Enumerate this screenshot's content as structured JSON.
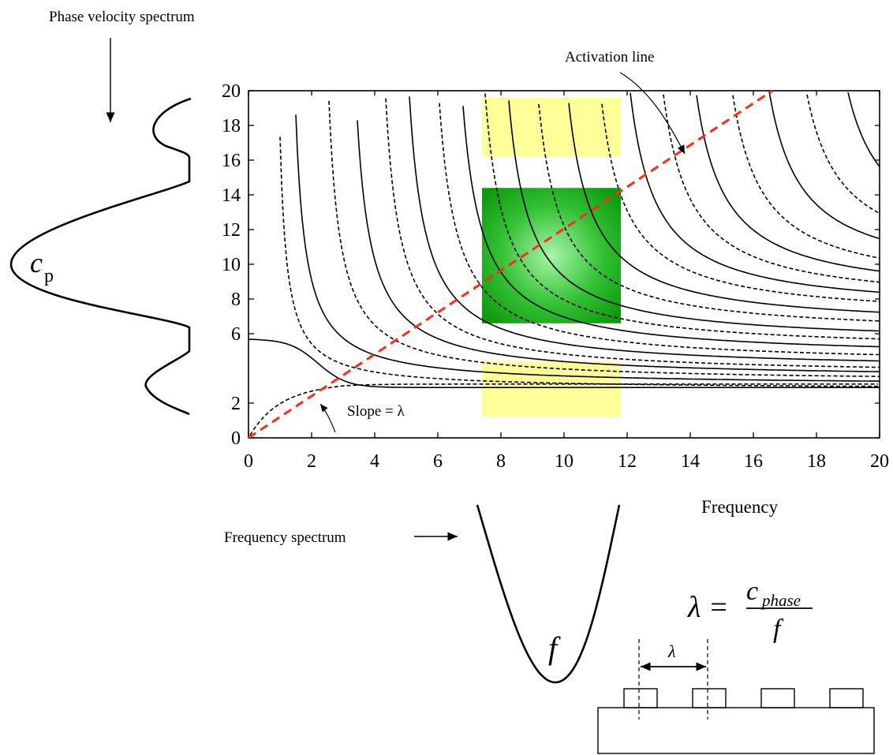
{
  "chart_data": {
    "type": "line",
    "title": "",
    "xlabel": "Frequency",
    "ylabel": "",
    "xlim": [
      0,
      20
    ],
    "ylim": [
      0,
      20
    ],
    "x_ticks": [
      0,
      2,
      4,
      6,
      8,
      10,
      12,
      14,
      16,
      18,
      20
    ],
    "y_ticks": [
      0,
      2,
      6,
      8,
      10,
      12,
      14,
      16,
      18,
      20
    ],
    "x_tick_labels": [
      "0",
      "2",
      "4",
      "6",
      "8",
      "10",
      "12",
      "14",
      "16",
      "18",
      "20"
    ],
    "y_tick_labels": [
      "0",
      "2",
      "6",
      "8",
      "10",
      "12",
      "14",
      "16",
      "18",
      "20"
    ],
    "grid": false,
    "activation_line": {
      "label": "Activation line",
      "slope": 1.2,
      "x": [
        0,
        16.6
      ],
      "y": [
        0,
        20
      ],
      "color": "#ff2a1a"
    },
    "slope_annotation": "Slope = λ",
    "highlight_regions": [
      {
        "kind": "yellow",
        "x": [
          7.4,
          11.8
        ],
        "y": [
          16.2,
          19.6
        ],
        "color": "#ffff88"
      },
      {
        "kind": "green",
        "x": [
          7.4,
          11.8
        ],
        "y": [
          6.6,
          14.4
        ],
        "color": "#14a314"
      },
      {
        "kind": "yellow",
        "x": [
          7.4,
          11.8
        ],
        "y": [
          1.2,
          4.4
        ],
        "color": "#ffff88"
      }
    ]
  },
  "labels": {
    "phase_velocity_spectrum": "Phase velocity spectrum",
    "activation_line": "Activation line",
    "frequency_spectrum": "Frequency spectrum",
    "frequency_axis": "Frequency",
    "slope": "Slope = λ",
    "cp_main": "c",
    "cp_sub": "p",
    "f_label": "f",
    "lambda_symbol": "λ",
    "formula_lhs": "λ =",
    "formula_numerator_c": "c",
    "formula_numerator_sub": "phase",
    "formula_denominator": "f",
    "wavelength_label": "λ"
  },
  "colors": {
    "activation_line": "#ff2a1a",
    "yellow_region": "#ffff88",
    "green_region": "#14a314",
    "ink": "#000000"
  }
}
